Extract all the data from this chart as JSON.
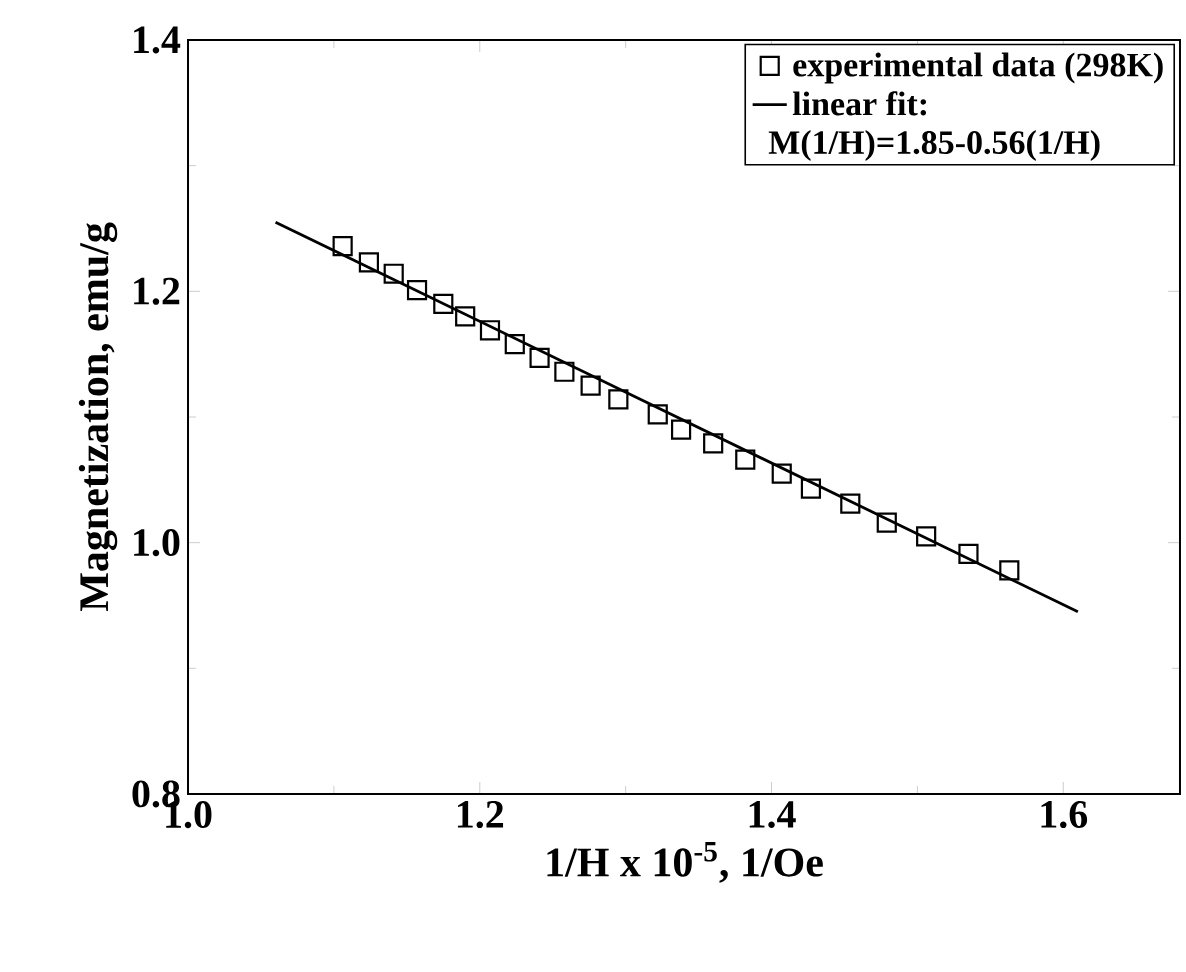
{
  "chart_data": {
    "type": "scatter",
    "xlabel": "1/H x 10$^{-5}$, 1/Oe",
    "ylabel": "Magnetization, emu/g",
    "annotations": [
      "M(1/H)=1.85-0.56(1/H)"
    ],
    "xlim": [
      1.0,
      1.68
    ],
    "ylim": [
      0.8,
      1.4
    ],
    "xticks": [
      {
        "value": 1.0,
        "label": "1.0"
      },
      {
        "value": 1.2,
        "label": "1.2"
      },
      {
        "value": 1.4,
        "label": "1.4"
      },
      {
        "value": 1.6,
        "label": "1.6"
      }
    ],
    "yticks": [
      {
        "value": 0.8,
        "label": "0.8"
      },
      {
        "value": 1.0,
        "label": "1.0"
      },
      {
        "value": 1.2,
        "label": "1.2"
      },
      {
        "value": 1.4,
        "label": "1.4"
      }
    ],
    "legend": "top right",
    "series": [
      {
        "name": "experimental data (298K)",
        "color": "#000000",
        "marker": "square",
        "x": [
          1.106,
          1.124,
          1.141,
          1.157,
          1.175,
          1.19,
          1.207,
          1.224,
          1.241,
          1.258,
          1.276,
          1.295,
          1.322,
          1.338,
          1.36,
          1.382,
          1.407,
          1.427,
          1.454,
          1.479,
          1.506,
          1.535,
          1.563
        ],
        "values": [
          1.236,
          1.223,
          1.214,
          1.201,
          1.19,
          1.18,
          1.169,
          1.158,
          1.147,
          1.136,
          1.125,
          1.114,
          1.102,
          1.09,
          1.079,
          1.066,
          1.055,
          1.043,
          1.031,
          1.016,
          1.005,
          0.991,
          0.978
        ]
      },
      {
        "name": "linear fit:",
        "type": "line",
        "color": "#000000",
        "line_style": "solid",
        "marker": "none",
        "x": [
          1.06,
          1.61
        ],
        "values": [
          1.255,
          0.945
        ]
      }
    ]
  }
}
